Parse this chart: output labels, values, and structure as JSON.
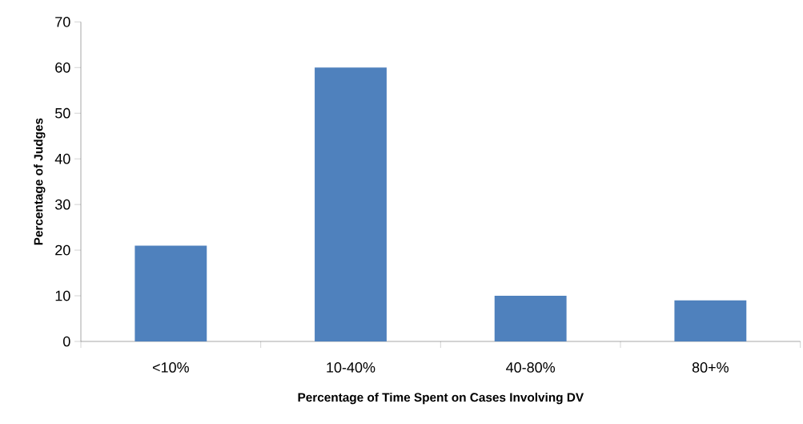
{
  "chart_data": {
    "type": "bar",
    "xlabel": "Percentage of Time Spent on Cases Involving DV",
    "ylabel": "Percentage of Judges",
    "categories": [
      "<10%",
      "10-40%",
      "40-80%",
      "80+%"
    ],
    "values": [
      21,
      60,
      10,
      9
    ],
    "color": "#4f81bd",
    "ylim": [
      0,
      70
    ],
    "yticks": [
      0,
      10,
      20,
      30,
      40,
      50,
      60,
      70
    ]
  }
}
